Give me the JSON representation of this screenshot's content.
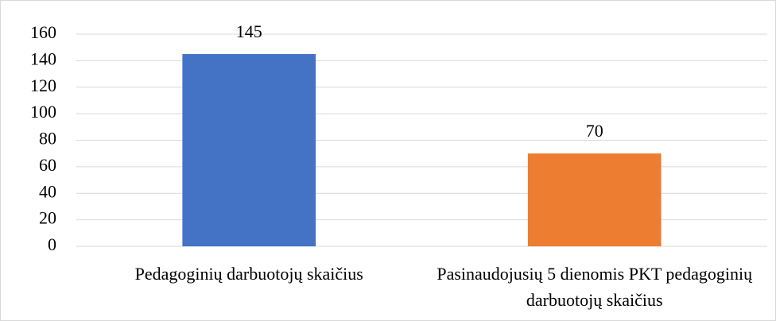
{
  "chart_data": {
    "type": "bar",
    "categories": [
      "Pedagoginių darbuotojų skaičius",
      "Pasinaudojusių 5 dienomis PKT pedagoginių darbuotojų skaičius"
    ],
    "values": [
      145,
      70
    ],
    "colors": [
      "#4472c4",
      "#ed7d31"
    ],
    "ylim": [
      0,
      160
    ],
    "yticks": [
      0,
      20,
      40,
      60,
      80,
      100,
      120,
      140,
      160
    ],
    "grid": true
  }
}
